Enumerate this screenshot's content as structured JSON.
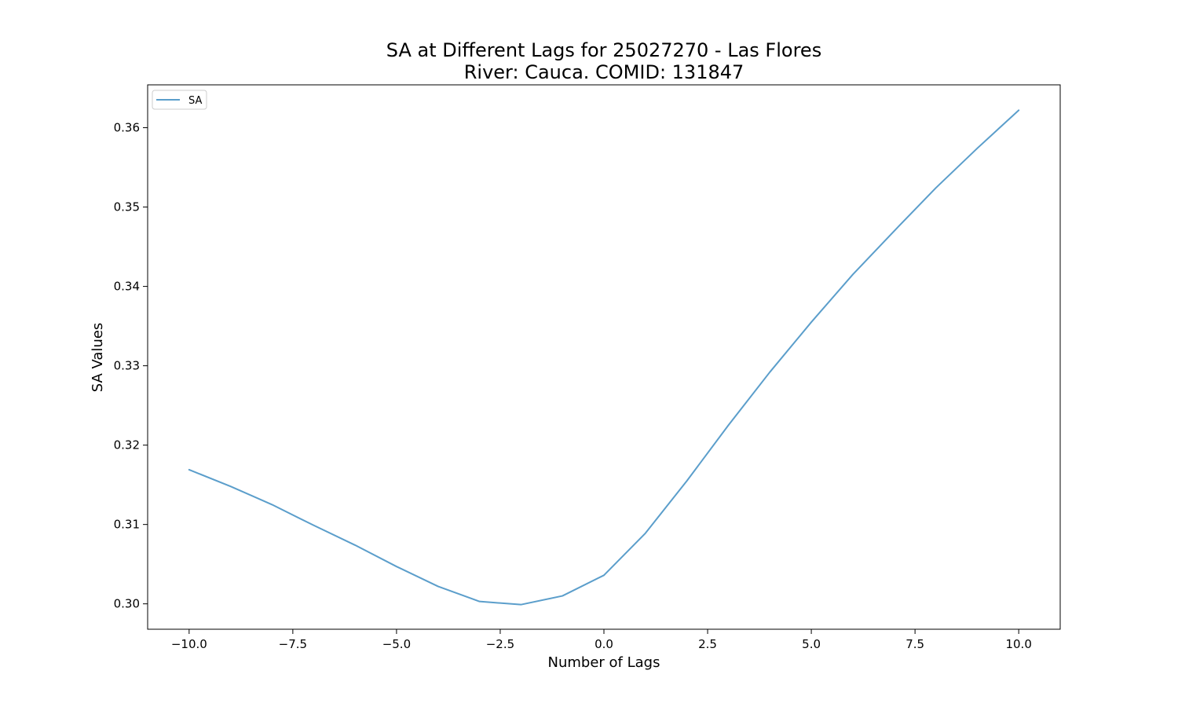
{
  "chart_data": {
    "type": "line",
    "title": "SA at Different Lags for 25027270 - Las Flores",
    "subtitle": "River: Cauca. COMID: 131847",
    "xlabel": "Number of Lags",
    "ylabel": "SA Values",
    "xlim": [
      -11,
      11
    ],
    "ylim": [
      0.2968,
      0.3654
    ],
    "x_ticks": [
      -10.0,
      -7.5,
      -5.0,
      -2.5,
      0.0,
      2.5,
      5.0,
      7.5,
      10.0
    ],
    "x_tick_labels": [
      "−10.0",
      "−7.5",
      "−5.0",
      "−2.5",
      "0.0",
      "2.5",
      "5.0",
      "7.5",
      "10.0"
    ],
    "y_ticks": [
      0.3,
      0.31,
      0.32,
      0.33,
      0.34,
      0.35,
      0.36
    ],
    "y_tick_labels": [
      "0.30",
      "0.31",
      "0.32",
      "0.33",
      "0.34",
      "0.35",
      "0.36"
    ],
    "grid": false,
    "legend_position": "upper-left",
    "series": [
      {
        "name": "SA",
        "color": "#5b9ecb",
        "x": [
          -10,
          -9,
          -8,
          -7,
          -6,
          -5,
          -4,
          -3,
          -2,
          -1,
          0,
          1,
          2,
          3,
          4,
          5,
          6,
          7,
          8,
          9,
          10
        ],
        "y": [
          0.3169,
          0.3148,
          0.3125,
          0.3099,
          0.3074,
          0.3047,
          0.3022,
          0.3003,
          0.2999,
          0.301,
          0.3036,
          0.3089,
          0.3155,
          0.3225,
          0.3292,
          0.3355,
          0.3415,
          0.347,
          0.3524,
          0.3574,
          0.3622
        ]
      }
    ]
  }
}
